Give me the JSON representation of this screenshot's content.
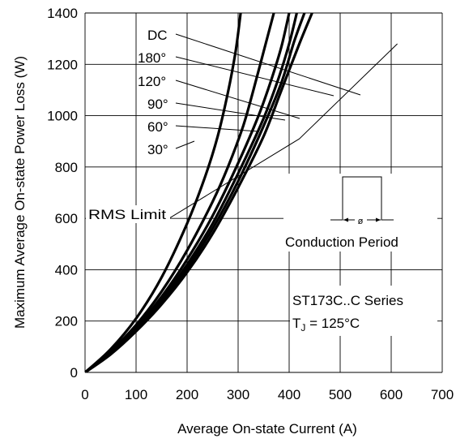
{
  "chart_data": {
    "type": "line",
    "xlabel": "Average On-state Current (A)",
    "ylabel": "Maximum Average On-state Power Loss (W)",
    "xlim": [
      0,
      700
    ],
    "ylim": [
      0,
      1400
    ],
    "x_ticks": [
      "0",
      "100",
      "200",
      "300",
      "400",
      "500",
      "600",
      "700"
    ],
    "y_ticks": [
      "0",
      "200",
      "400",
      "600",
      "800",
      "1000",
      "1200",
      "1400"
    ],
    "grid": true,
    "series": [
      {
        "name": "30°",
        "points": [
          [
            0,
            0
          ],
          [
            50,
            70
          ],
          [
            100,
            160
          ],
          [
            150,
            265
          ],
          [
            200,
            390
          ],
          [
            250,
            540
          ],
          [
            300,
            720
          ],
          [
            350,
            920
          ],
          [
            385,
            1100
          ],
          [
            420,
            1280
          ],
          [
            445,
            1400
          ]
        ]
      },
      {
        "name": "60°",
        "points": [
          [
            0,
            0
          ],
          [
            50,
            72
          ],
          [
            100,
            165
          ],
          [
            150,
            275
          ],
          [
            200,
            405
          ],
          [
            250,
            560
          ],
          [
            300,
            745
          ],
          [
            350,
            960
          ],
          [
            385,
            1130
          ],
          [
            410,
            1290
          ],
          [
            430,
            1400
          ]
        ]
      },
      {
        "name": "90°",
        "points": [
          [
            0,
            0
          ],
          [
            50,
            75
          ],
          [
            100,
            170
          ],
          [
            150,
            285
          ],
          [
            200,
            420
          ],
          [
            250,
            580
          ],
          [
            300,
            775
          ],
          [
            350,
            990
          ],
          [
            380,
            1150
          ],
          [
            400,
            1280
          ],
          [
            415,
            1400
          ]
        ]
      },
      {
        "name": "120°",
        "points": [
          [
            0,
            0
          ],
          [
            50,
            78
          ],
          [
            100,
            175
          ],
          [
            150,
            295
          ],
          [
            200,
            440
          ],
          [
            250,
            610
          ],
          [
            300,
            815
          ],
          [
            340,
            1000
          ],
          [
            365,
            1140
          ],
          [
            385,
            1270
          ],
          [
            400,
            1400
          ]
        ]
      },
      {
        "name": "180°",
        "points": [
          [
            0,
            0
          ],
          [
            50,
            82
          ],
          [
            100,
            185
          ],
          [
            150,
            315
          ],
          [
            200,
            475
          ],
          [
            250,
            665
          ],
          [
            280,
            800
          ],
          [
            310,
            960
          ],
          [
            330,
            1100
          ],
          [
            350,
            1250
          ],
          [
            370,
            1400
          ]
        ]
      },
      {
        "name": "DC",
        "points": [
          [
            0,
            0
          ],
          [
            50,
            90
          ],
          [
            100,
            210
          ],
          [
            150,
            370
          ],
          [
            200,
            580
          ],
          [
            235,
            760
          ],
          [
            260,
            920
          ],
          [
            280,
            1090
          ],
          [
            295,
            1250
          ],
          [
            305,
            1400
          ]
        ]
      }
    ],
    "rms_limit_line": {
      "points": [
        [
          165,
          600
        ],
        [
          420,
          910
        ],
        [
          612,
          1280
        ]
      ]
    },
    "curve_labels": [
      "DC",
      "180°",
      "120°",
      "90°",
      "60°",
      "30°"
    ],
    "rms_label": "RMS Limit",
    "conduction_label": "Conduction Period",
    "phi_symbol": "ø",
    "series_text": "ST173C..C Series",
    "tj_label_main": "T",
    "tj_label_sub": "J",
    "tj_label_value": " = 125°C"
  }
}
